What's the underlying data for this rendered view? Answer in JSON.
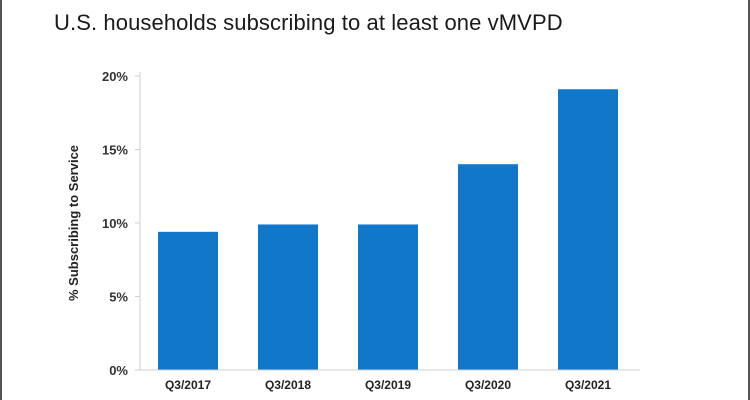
{
  "chart_data": {
    "type": "bar",
    "title": "U.S. households subscribing to at least one vMVPD",
    "ylabel": "% Subscribing to Service",
    "xlabel": "",
    "categories": [
      "Q3/2017",
      "Q3/2018",
      "Q3/2019",
      "Q3/2020",
      "Q3/2021"
    ],
    "values": [
      9.4,
      9.9,
      9.9,
      14,
      19.1
    ],
    "ylim": [
      0,
      20
    ],
    "yticks": [
      0,
      5,
      10,
      15,
      20
    ],
    "ytick_labels": [
      "0%",
      "5%",
      "10%",
      "15%",
      "20%"
    ],
    "bar_color": "#1177c8",
    "grid": false,
    "legend": "none"
  }
}
